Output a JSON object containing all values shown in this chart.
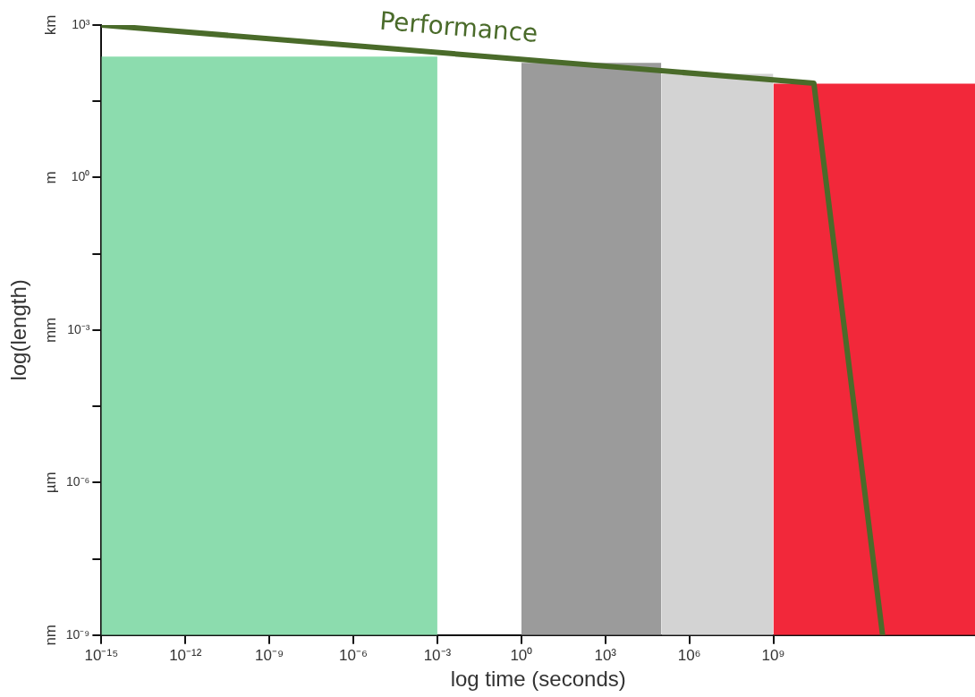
{
  "chart_data": {
    "type": "area",
    "xlabel": "log time (seconds)",
    "ylabel": "log(length)",
    "log": "xy",
    "grid": false,
    "legend": false,
    "marker": "none",
    "xlim": [
      1e-15,
      1.6e+16
    ],
    "ylim": [
      1e-09,
      1000.0
    ],
    "xticks": [
      {
        "value": 1e-15,
        "label": "10⁻¹⁵"
      },
      {
        "value": 1e-12,
        "label": "10⁻¹²"
      },
      {
        "value": 1e-09,
        "label": "10⁻⁹"
      },
      {
        "value": 1e-06,
        "label": "10⁻⁶"
      },
      {
        "value": 0.001,
        "label": "10⁻³"
      },
      {
        "value": 1,
        "label": "10⁰"
      },
      {
        "value": 1000.0,
        "label": "10³"
      },
      {
        "value": 1000000.0,
        "label": "10⁶"
      },
      {
        "value": 1000000000.0,
        "label": "10⁹"
      }
    ],
    "yticks": [
      {
        "value": 1e-09,
        "label": "10⁻⁹"
      },
      {
        "value": 3.162e-08,
        "label": null
      },
      {
        "value": 1e-06,
        "label": "10⁻⁶"
      },
      {
        "value": 3.162e-05,
        "label": null
      },
      {
        "value": 0.001,
        "label": "10⁻³"
      },
      {
        "value": 0.03162,
        "label": null
      },
      {
        "value": 1,
        "label": "10⁰"
      },
      {
        "value": 31.62,
        "label": null
      },
      {
        "value": 1000.0,
        "label": "10³"
      }
    ],
    "annotations": [
      "nm",
      "µm",
      "mm",
      "m",
      "km"
    ],
    "series": [
      {
        "color": "#8cdcae",
        "x": [
          1e-15,
          0.001
        ],
        "values": [
          240,
          240
        ]
      },
      {
        "color": "#9b9b9b",
        "x": [
          1,
          100000.0
        ],
        "values": [
          180,
          180
        ]
      },
      {
        "color": "#d3d3d3",
        "x": [
          100000.0,
          1000000000.0
        ],
        "values": [
          110,
          110
        ]
      },
      {
        "color": "#f2283a",
        "x": [
          1000000000.0,
          1.6e+16
        ],
        "values": [
          70,
          70
        ]
      },
      {
        "type": "line",
        "name": "Performance",
        "color": "#4a6b2a",
        "x": [
          1e-15,
          28000000000.0,
          8000000000000.0
        ],
        "values": [
          1000,
          72,
          1e-09
        ]
      }
    ]
  }
}
